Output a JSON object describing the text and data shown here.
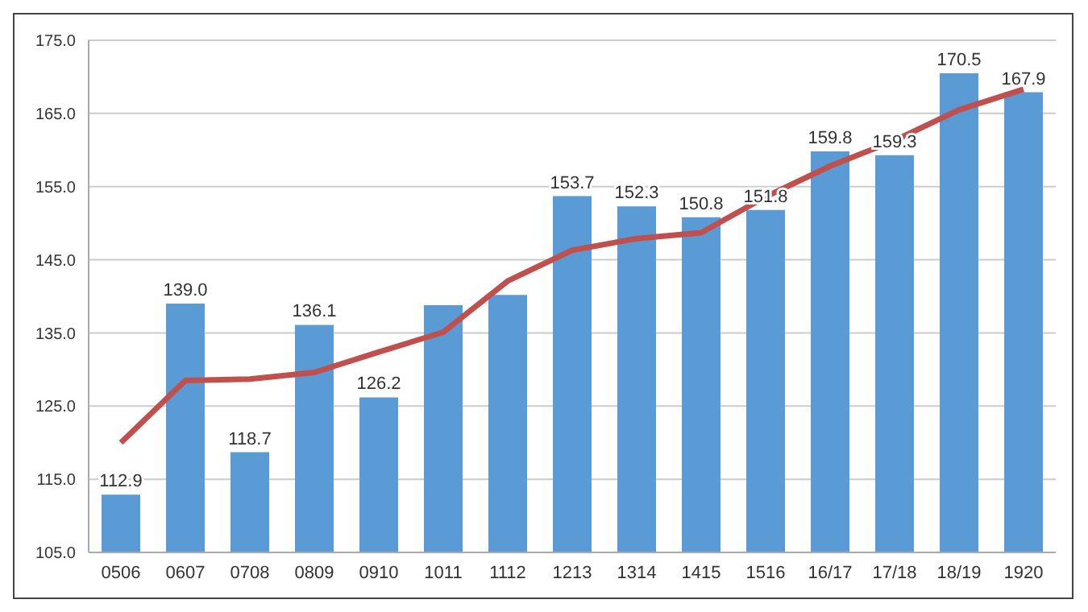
{
  "chart_data": {
    "type": "bar",
    "categories": [
      "0506",
      "0607",
      "0708",
      "0809",
      "0910",
      "1011",
      "1112",
      "1213",
      "1314",
      "1415",
      "1516",
      "16/17",
      "17/18",
      "18/19",
      "1920"
    ],
    "series": [
      {
        "color": "#5b9bd5",
        "values": [
          112.9,
          139.0,
          118.7,
          136.1,
          126.2,
          138.8,
          140.2,
          153.7,
          152.3,
          150.8,
          151.8,
          159.8,
          159.3,
          170.5,
          167.9
        ],
        "value_labels": [
          "112.9",
          "139.0",
          "118.7",
          "136.1",
          "126.2",
          null,
          null,
          "153.7",
          "152.3",
          "150.8",
          "151.8",
          "159.8",
          "159.3",
          "170.5",
          "167.9"
        ]
      },
      {
        "type": "line",
        "color": "#c0504d",
        "values": [
          120.0,
          128.5,
          128.7,
          129.6,
          132.4,
          135.1,
          142.1,
          146.3,
          147.9,
          148.7,
          153.6,
          157.8,
          161.3,
          165.5,
          168.3
        ]
      }
    ],
    "ylim": [
      105,
      175
    ],
    "yticks": [
      {
        "value": 105,
        "label": "105.0"
      },
      {
        "value": 115,
        "label": "115.0"
      },
      {
        "value": 125,
        "label": "125.0"
      },
      {
        "value": 135,
        "label": "135.0"
      },
      {
        "value": 145,
        "label": "145.0"
      },
      {
        "value": 155,
        "label": "155.0"
      },
      {
        "value": 165,
        "label": "165.0"
      },
      {
        "value": 175,
        "label": "175.0"
      }
    ],
    "grid": "y",
    "legend": false,
    "marker": "none"
  }
}
